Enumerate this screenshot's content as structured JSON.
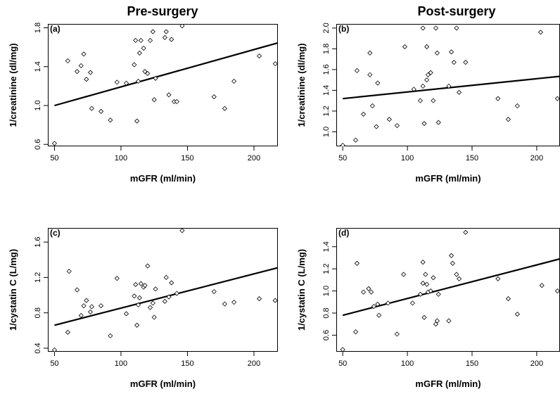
{
  "column_titles": [
    "Pre-surgery",
    "Post-surgery"
  ],
  "chart_data": [
    {
      "type": "scatter",
      "panel_label": "(a)",
      "xlabel": "mGFR (ml/min)",
      "ylabel": "1/creatinine (dl/mg)",
      "xlim": [
        45,
        218
      ],
      "ylim": [
        0.58,
        1.84
      ],
      "xticks": [
        50,
        100,
        150,
        200
      ],
      "yticks": [
        0.6,
        1.0,
        1.4,
        1.8
      ],
      "x": [
        50,
        60,
        67,
        70,
        72,
        74,
        77,
        78,
        85,
        92,
        97,
        104,
        110,
        111,
        112,
        113,
        114,
        115,
        117,
        118,
        120,
        122,
        124,
        125,
        126,
        133,
        134,
        136,
        138,
        140,
        142,
        146,
        170,
        178,
        185,
        204,
        216
      ],
      "y": [
        0.61,
        1.46,
        1.35,
        1.41,
        1.53,
        1.27,
        1.34,
        0.97,
        0.94,
        0.85,
        1.24,
        1.23,
        1.42,
        1.67,
        0.84,
        1.25,
        1.54,
        1.67,
        1.59,
        1.35,
        1.33,
        1.67,
        1.76,
        1.06,
        1.28,
        1.7,
        1.76,
        1.11,
        1.68,
        1.04,
        1.04,
        1.82,
        1.09,
        0.97,
        1.25,
        1.51,
        1.43
      ],
      "fit_line": {
        "x": [
          50,
          218
        ],
        "y": [
          1.0,
          1.645
        ]
      }
    },
    {
      "type": "scatter",
      "panel_label": "(b)",
      "xlabel": "mGFR (ml/min)",
      "ylabel": "1/creatinine (dl/mg)",
      "xlim": [
        45,
        218
      ],
      "ylim": [
        0.86,
        2.04
      ],
      "xticks": [
        50,
        100,
        150,
        200
      ],
      "yticks": [
        1.0,
        1.2,
        1.4,
        1.6,
        1.8,
        2.0
      ],
      "x": [
        50,
        60,
        61,
        66,
        71,
        71,
        73,
        76,
        77,
        86,
        92,
        98,
        105,
        110,
        112,
        112,
        113,
        115,
        115,
        116,
        118,
        120,
        122,
        123,
        124,
        132,
        134,
        136,
        138,
        140,
        145,
        170,
        178,
        185,
        203,
        216
      ],
      "y": [
        0.87,
        0.92,
        1.59,
        1.17,
        1.55,
        1.76,
        1.25,
        1.05,
        1.47,
        1.12,
        1.06,
        1.82,
        1.41,
        1.3,
        2.0,
        1.44,
        1.08,
        1.5,
        1.82,
        1.55,
        1.57,
        1.3,
        2.0,
        1.76,
        1.09,
        1.44,
        1.77,
        1.67,
        2.0,
        1.38,
        1.67,
        1.32,
        1.12,
        1.25,
        1.96,
        1.32
      ],
      "fit_line": {
        "x": [
          50,
          218
        ],
        "y": [
          1.32,
          1.535
        ]
      }
    },
    {
      "type": "scatter",
      "panel_label": "(c)",
      "xlabel": "mGFR (ml/min)",
      "ylabel": "1/cystatin C (L/mg)",
      "xlim": [
        45,
        218
      ],
      "ylim": [
        0.36,
        1.76
      ],
      "xticks": [
        50,
        100,
        150,
        200
      ],
      "yticks": [
        0.4,
        0.8,
        1.2,
        1.6
      ],
      "x": [
        50,
        60,
        61,
        67,
        70,
        72,
        74,
        77,
        78,
        85,
        92,
        97,
        104,
        110,
        111,
        112,
        113,
        114,
        115,
        117,
        118,
        120,
        122,
        124,
        125,
        126,
        133,
        134,
        136,
        138,
        142,
        146,
        170,
        178,
        185,
        204,
        216
      ],
      "y": [
        0.38,
        0.58,
        1.27,
        1.06,
        0.77,
        0.88,
        0.94,
        0.81,
        0.87,
        0.88,
        0.54,
        1.19,
        0.79,
        0.99,
        1.12,
        0.66,
        0.89,
        0.97,
        1.13,
        1.09,
        1.11,
        1.33,
        0.86,
        0.91,
        0.75,
        1.07,
        0.93,
        1.2,
        0.98,
        1.14,
        1.02,
        1.73,
        1.04,
        0.9,
        0.92,
        0.96,
        0.94
      ],
      "fit_line": {
        "x": [
          50,
          218
        ],
        "y": [
          0.66,
          1.31
        ]
      }
    },
    {
      "type": "scatter",
      "panel_label": "(d)",
      "xlabel": "mGFR (ml/min)",
      "ylabel": "1/cystatin C (L/mg)",
      "xlim": [
        45,
        218
      ],
      "ylim": [
        0.45,
        1.57
      ],
      "xticks": [
        50,
        100,
        150,
        200
      ],
      "yticks": [
        0.6,
        0.8,
        1.0,
        1.2,
        1.4
      ],
      "x": [
        50,
        60,
        61,
        66,
        70,
        72,
        74,
        77,
        78,
        85,
        92,
        97,
        104,
        110,
        112,
        112,
        113,
        114,
        115,
        116,
        118,
        120,
        122,
        123,
        124,
        132,
        134,
        135,
        138,
        140,
        145,
        170,
        178,
        185,
        204,
        216
      ],
      "y": [
        0.47,
        0.63,
        1.25,
        0.99,
        1.02,
        0.99,
        0.86,
        0.88,
        0.78,
        0.89,
        0.61,
        1.15,
        0.89,
        0.97,
        1.26,
        1.07,
        0.76,
        1.15,
        1.06,
        0.99,
        1.0,
        1.12,
        0.7,
        0.73,
        0.97,
        0.73,
        1.32,
        1.25,
        1.15,
        1.11,
        1.53,
        1.11,
        0.93,
        0.79,
        1.05,
        1.0
      ],
      "fit_line": {
        "x": [
          50,
          218
        ],
        "y": [
          0.78,
          1.29
        ]
      }
    }
  ]
}
